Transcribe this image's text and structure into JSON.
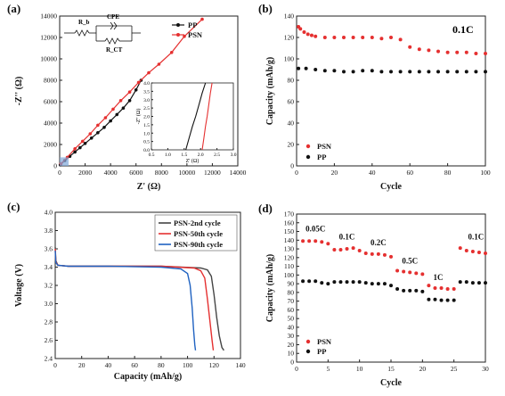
{
  "chart_data": [
    {
      "type": "scatter",
      "panel_label": "(a)",
      "xlabel": "Z' (Ω)",
      "ylabel": "-Z'' (Ω)",
      "xlim": [
        0,
        14000
      ],
      "ylim": [
        0,
        14000
      ],
      "xticks": [
        "0",
        "2000",
        "4000",
        "6000",
        "8000",
        "10000",
        "12000",
        "14000"
      ],
      "yticks": [
        "0",
        "2000",
        "4000",
        "6000",
        "8000",
        "10000",
        "12000",
        "14000"
      ],
      "legend": "top-right",
      "circuit_labels": {
        "rb": "R_b",
        "cpe": "CPE",
        "rct": "R_CT"
      },
      "series": [
        {
          "name": "PP",
          "color": "#111111",
          "x": [
            50,
            400,
            800,
            1200,
            1600,
            2000,
            2500,
            3000,
            3500,
            4000,
            4500,
            5000,
            5500,
            6000,
            6400
          ],
          "y": [
            100,
            500,
            900,
            1300,
            1700,
            2100,
            2600,
            3100,
            3600,
            4200,
            4800,
            5400,
            6100,
            7100,
            8000
          ]
        },
        {
          "name": "PSN",
          "color": "#e53030",
          "x": [
            100,
            600,
            1200,
            1800,
            2400,
            3000,
            3600,
            4200,
            4800,
            5500,
            6200,
            7000,
            7800,
            8800,
            9800,
            11200
          ],
          "y": [
            200,
            800,
            1600,
            2300,
            3000,
            3800,
            4500,
            5300,
            6100,
            6900,
            7800,
            8700,
            9500,
            10600,
            12100,
            13700
          ]
        }
      ],
      "inset": {
        "xlabel": "Z' (Ω)",
        "ylabel": "-Z'' (Ω)",
        "xlim": [
          0.5,
          3.0
        ],
        "ylim": [
          0.0,
          4.0
        ],
        "xticks": [
          "0.5",
          "1.0",
          "1.5",
          "2.0",
          "2.5",
          "3.0"
        ],
        "yticks": [
          "0.0",
          "0.5",
          "1.0",
          "1.5",
          "2.0",
          "2.5",
          "3.0",
          "3.5",
          "4.0"
        ],
        "series": [
          {
            "name": "PP",
            "color": "#111111",
            "x": [
              1.55,
              1.65,
              1.75,
              1.85,
              1.95,
              2.05,
              2.15
            ],
            "y": [
              0.0,
              0.7,
              1.4,
              2.0,
              2.7,
              3.4,
              4.0
            ]
          },
          {
            "name": "PSN",
            "color": "#e53030",
            "x": [
              2.05,
              2.1,
              2.15,
              2.2,
              2.25,
              2.3,
              2.35
            ],
            "y": [
              0.0,
              0.7,
              1.4,
              2.0,
              2.7,
              3.4,
              4.0
            ]
          }
        ]
      }
    },
    {
      "type": "scatter",
      "panel_label": "(b)",
      "annotation": "0.1C",
      "xlabel": "Cycle",
      "ylabel": "Capacity (mAh/g)",
      "xlim": [
        0,
        100
      ],
      "ylim": [
        0,
        140
      ],
      "xticks": [
        "0",
        "20",
        "40",
        "60",
        "80",
        "100"
      ],
      "yticks": [
        "0",
        "20",
        "40",
        "60",
        "80",
        "100",
        "120",
        "140"
      ],
      "legend": "bottom-left",
      "series": [
        {
          "name": "PSN",
          "color": "#e53030",
          "x": [
            1,
            2,
            4,
            6,
            8,
            10,
            15,
            20,
            25,
            30,
            35,
            40,
            45,
            50,
            55,
            60,
            65,
            70,
            75,
            80,
            85,
            90,
            95,
            100
          ],
          "y": [
            130,
            128,
            125,
            123,
            122,
            121,
            120,
            120,
            120,
            120,
            120,
            120,
            119,
            120,
            118,
            111,
            109,
            108,
            107,
            106,
            106,
            106,
            105,
            105
          ]
        },
        {
          "name": "PP",
          "color": "#111111",
          "x": [
            1,
            5,
            10,
            15,
            20,
            25,
            30,
            35,
            40,
            45,
            50,
            55,
            60,
            65,
            70,
            75,
            80,
            85,
            90,
            95,
            100
          ],
          "y": [
            91,
            91,
            90,
            89,
            89,
            88,
            88,
            89,
            89,
            88,
            88,
            88,
            88,
            88,
            88,
            88,
            88,
            88,
            88,
            88,
            88
          ]
        }
      ]
    },
    {
      "type": "line",
      "panel_label": "(c)",
      "xlabel": "Capacity (mAh/g)",
      "ylabel": "Voltage (V)",
      "xlim": [
        0,
        140
      ],
      "ylim": [
        2.4,
        4.0
      ],
      "xticks": [
        "0",
        "20",
        "40",
        "60",
        "80",
        "100",
        "120",
        "140"
      ],
      "yticks": [
        "2.4",
        "2.6",
        "2.8",
        "3.0",
        "3.2",
        "3.4",
        "3.6",
        "3.8",
        "4.0"
      ],
      "legend": "top-right",
      "series": [
        {
          "name": "PSN-2nd cycle",
          "color": "#444444",
          "x": [
            0,
            0.5,
            2,
            10,
            40,
            80,
            110,
            115,
            118,
            120,
            122,
            124,
            126,
            127.5
          ],
          "y": [
            3.62,
            3.47,
            3.42,
            3.41,
            3.41,
            3.41,
            3.39,
            3.37,
            3.3,
            3.1,
            2.85,
            2.65,
            2.52,
            2.49
          ]
        },
        {
          "name": "PSN-50th cycle",
          "color": "#e53030",
          "x": [
            0,
            0.5,
            2,
            10,
            40,
            80,
            105,
            110,
            113,
            115,
            117,
            118.5,
            119.5
          ],
          "y": [
            3.6,
            3.46,
            3.42,
            3.41,
            3.41,
            3.41,
            3.39,
            3.36,
            3.28,
            3.05,
            2.8,
            2.6,
            2.49
          ]
        },
        {
          "name": "PSN-90th cycle",
          "color": "#1f62c1",
          "x": [
            0,
            0.5,
            2,
            10,
            40,
            80,
            95,
            100,
            102,
            103.5,
            104.5,
            105.5,
            106
          ],
          "y": [
            3.58,
            3.45,
            3.42,
            3.41,
            3.41,
            3.4,
            3.38,
            3.33,
            3.2,
            2.95,
            2.72,
            2.55,
            2.49
          ]
        }
      ]
    },
    {
      "type": "scatter",
      "panel_label": "(d)",
      "xlabel": "Cycle",
      "ylabel": "Capacity (mAh/g)",
      "xlim": [
        0,
        30
      ],
      "ylim": [
        0,
        170
      ],
      "xticks": [
        "0",
        "5",
        "10",
        "15",
        "20",
        "25",
        "30"
      ],
      "yticks": [
        "0",
        "10",
        "20",
        "30",
        "40",
        "50",
        "60",
        "70",
        "80",
        "90",
        "100",
        "110",
        "120",
        "130",
        "140",
        "150",
        "160",
        "170"
      ],
      "legend": "bottom-left",
      "rate_labels": [
        {
          "text": "0.05C",
          "x": 3,
          "y": 150
        },
        {
          "text": "0.1C",
          "x": 8,
          "y": 141
        },
        {
          "text": "0.2C",
          "x": 13,
          "y": 134
        },
        {
          "text": "0.5C",
          "x": 18,
          "y": 113
        },
        {
          "text": "1C",
          "x": 22.5,
          "y": 94
        },
        {
          "text": "0.1C",
          "x": 28.5,
          "y": 141
        }
      ],
      "series": [
        {
          "name": "PSN",
          "color": "#e53030",
          "x": [
            1,
            2,
            3,
            4,
            5,
            6,
            7,
            8,
            9,
            10,
            11,
            12,
            13,
            14,
            15,
            16,
            17,
            18,
            19,
            20,
            21,
            22,
            23,
            24,
            25,
            26,
            27,
            28,
            29,
            30
          ],
          "y": [
            139,
            139,
            139,
            138,
            136,
            129,
            129,
            130,
            131,
            128,
            125,
            124,
            124,
            123,
            121,
            105,
            104,
            103,
            102,
            101,
            88,
            85,
            85,
            84,
            84,
            131,
            128,
            127,
            126,
            125
          ]
        },
        {
          "name": "PP",
          "color": "#111111",
          "x": [
            1,
            2,
            3,
            4,
            5,
            6,
            7,
            8,
            9,
            10,
            11,
            12,
            13,
            14,
            15,
            16,
            17,
            18,
            19,
            20,
            21,
            22,
            23,
            24,
            25,
            26,
            27,
            28,
            29,
            30
          ],
          "y": [
            93,
            93,
            93,
            91,
            90,
            92,
            92,
            92,
            92,
            92,
            91,
            90,
            90,
            90,
            88,
            84,
            82,
            82,
            82,
            81,
            72,
            72,
            71,
            71,
            71,
            92,
            92,
            91,
            91,
            91
          ]
        }
      ]
    }
  ]
}
